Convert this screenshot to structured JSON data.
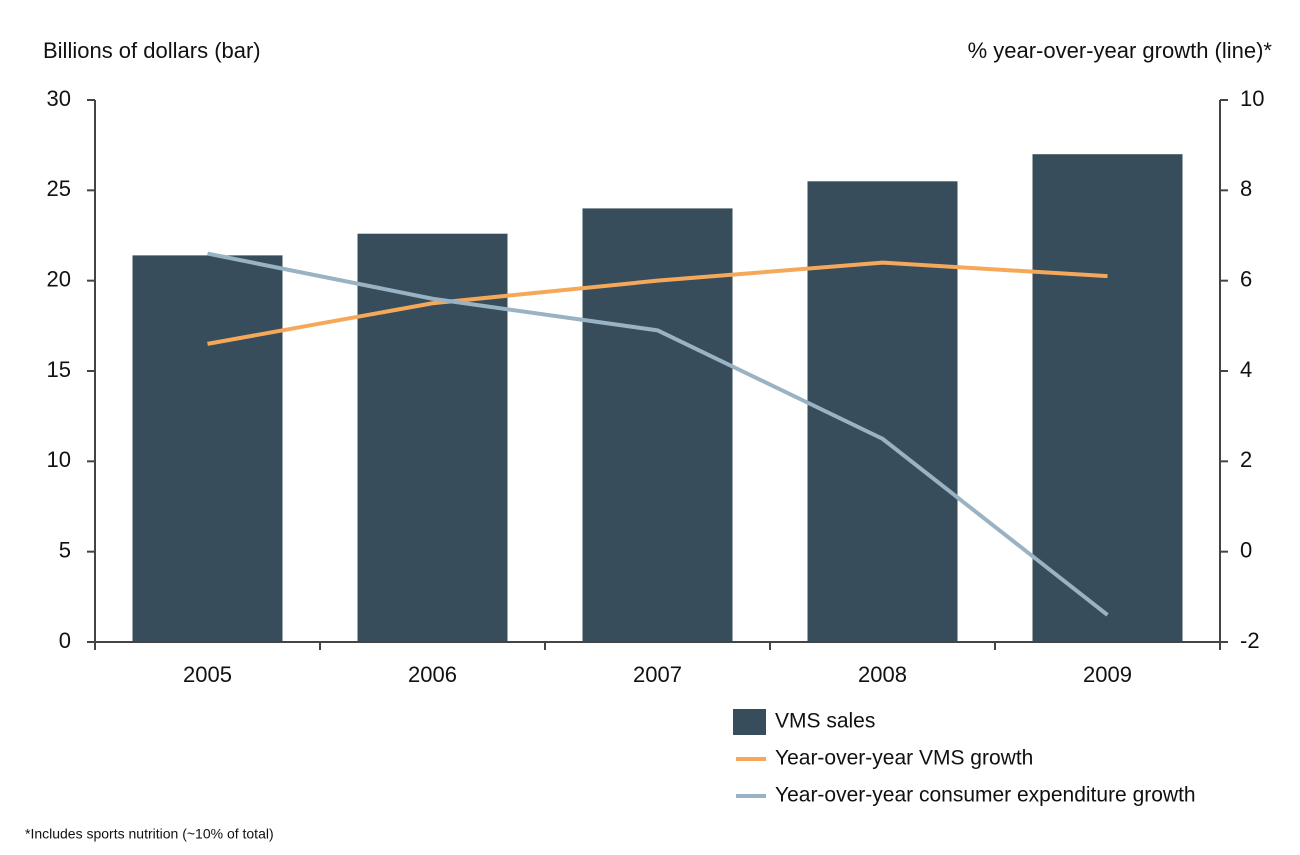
{
  "chart_data": {
    "type": "bar_line",
    "y_label": "Billions of dollars (bar)",
    "y2_label": "% year-over-year growth (line)*",
    "footnote": "*Includes sports nutrition (~10% of total)",
    "categories": [
      "2005",
      "2006",
      "2007",
      "2008",
      "2009"
    ],
    "series": [
      {
        "name": "VMS sales",
        "type": "bar",
        "color": "#374d5b",
        "values": [
          21.4,
          22.6,
          24.0,
          25.5,
          27.0
        ]
      },
      {
        "name": "Year-over-year VMS growth",
        "type": "line",
        "axis": "y2",
        "color": "#f5a85a",
        "values": [
          4.6,
          5.5,
          6.0,
          6.4,
          6.1
        ]
      },
      {
        "name": "Year-over-year consumer expenditure growth",
        "type": "line",
        "axis": "y2",
        "color": "#99b3c4",
        "values": [
          6.6,
          5.6,
          4.9,
          2.5,
          -1.4
        ]
      }
    ],
    "ylim": [
      0,
      30
    ],
    "yticks": [
      0,
      5,
      10,
      15,
      20,
      25,
      30
    ],
    "y2lim": [
      -2,
      10
    ],
    "y2ticks": [
      -2,
      0,
      2,
      4,
      6,
      8,
      10
    ]
  }
}
